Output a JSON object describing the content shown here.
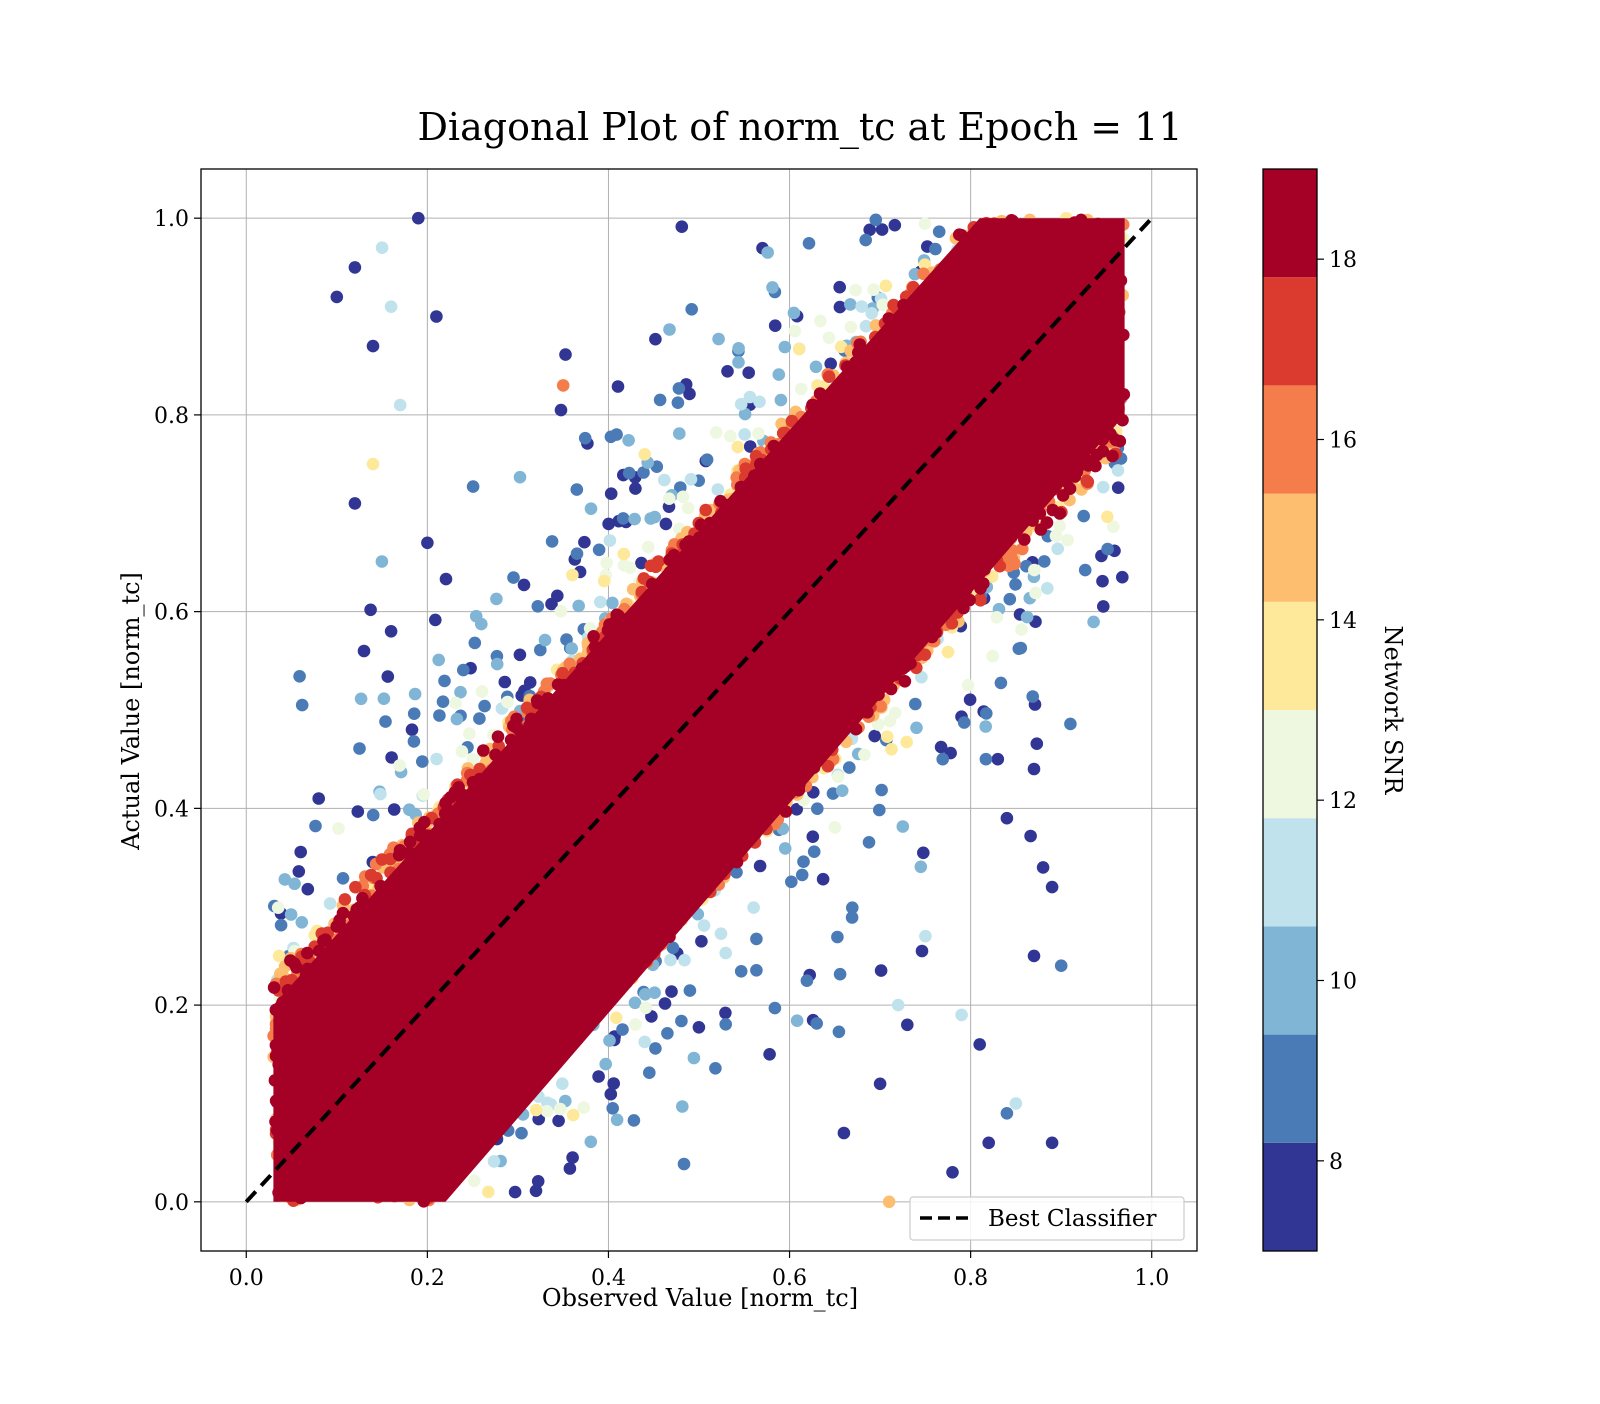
{
  "chart_data": {
    "type": "scatter",
    "title": "Diagonal Plot of norm_tc at Epoch = 11",
    "xlabel": "Observed Value [norm_tc]",
    "ylabel": "Actual Value [norm_tc]",
    "xlim": [
      -0.05,
      1.05
    ],
    "ylim": [
      -0.05,
      1.05
    ],
    "x_ticks": [
      "0.0",
      "0.2",
      "0.4",
      "0.6",
      "0.8",
      "1.0"
    ],
    "y_ticks": [
      "0.0",
      "0.2",
      "0.4",
      "0.6",
      "0.8",
      "1.0"
    ],
    "grid": true,
    "legend": {
      "placement": "lower-right",
      "entries": [
        "Best Classifier"
      ]
    },
    "reference_line": {
      "name": "Best Classifier",
      "from": [
        0,
        0
      ],
      "to": [
        1,
        1
      ],
      "style": "dashed",
      "color": "#000000"
    },
    "colorbar": {
      "label": "Network SNR",
      "range": [
        7,
        19
      ],
      "tick_labels": [
        "8",
        "10",
        "12",
        "14",
        "16",
        "18"
      ],
      "ticks": [
        8,
        10,
        12,
        14,
        16,
        18
      ],
      "bins": [
        {
          "from": 7,
          "to": 8.2,
          "color": "#313695"
        },
        {
          "from": 8.2,
          "to": 9.4,
          "color": "#4a7bb7"
        },
        {
          "from": 9.4,
          "to": 10.6,
          "color": "#80b5d5"
        },
        {
          "from": 10.6,
          "to": 11.8,
          "color": "#bfe2ec"
        },
        {
          "from": 11.8,
          "to": 13.0,
          "color": "#eef7e0"
        },
        {
          "from": 13.0,
          "to": 14.2,
          "color": "#fee99a"
        },
        {
          "from": 14.2,
          "to": 15.4,
          "color": "#fdbe6f"
        },
        {
          "from": 15.4,
          "to": 16.6,
          "color": "#f57d4b"
        },
        {
          "from": 16.6,
          "to": 17.8,
          "color": "#da3b2e"
        },
        {
          "from": 17.8,
          "to": 19,
          "color": "#a50026"
        }
      ]
    },
    "points_summary": {
      "high_snr_band": {
        "snr": "18+",
        "y_minus_x_range": [
          -0.17,
          0.17
        ],
        "color": "#a50026"
      },
      "note_x_range": [
        0.03,
        0.97
      ],
      "note_y_range": [
        0.0,
        1.0
      ]
    },
    "sample_points": [
      [
        0.1,
        0.92,
        7.5
      ],
      [
        0.12,
        0.95,
        7.5
      ],
      [
        0.15,
        0.97,
        11
      ],
      [
        0.19,
        1.0,
        7.5
      ],
      [
        0.16,
        0.91,
        11
      ],
      [
        0.21,
        0.9,
        7.5
      ],
      [
        0.14,
        0.87,
        7.5
      ],
      [
        0.17,
        0.81,
        11
      ],
      [
        0.12,
        0.71,
        7.5
      ],
      [
        0.14,
        0.75,
        13
      ],
      [
        0.2,
        0.67,
        7.5
      ],
      [
        0.13,
        0.56,
        7.5
      ],
      [
        0.08,
        0.41,
        7.5
      ],
      [
        0.16,
        0.58,
        7.5
      ],
      [
        0.35,
        0.83,
        16
      ],
      [
        0.44,
        0.76,
        13
      ],
      [
        0.66,
        0.07,
        7.5
      ],
      [
        0.7,
        0.12,
        7.5
      ],
      [
        0.72,
        0.2,
        11
      ],
      [
        0.75,
        0.27,
        11
      ],
      [
        0.79,
        0.19,
        11
      ],
      [
        0.81,
        0.16,
        7.5
      ],
      [
        0.87,
        0.25,
        7.5
      ],
      [
        0.88,
        0.34,
        7.5
      ],
      [
        0.89,
        0.32,
        7.5
      ],
      [
        0.9,
        0.24,
        9
      ],
      [
        0.89,
        0.06,
        7.5
      ],
      [
        0.84,
        0.09,
        9
      ],
      [
        0.83,
        0.45,
        7.5
      ],
      [
        0.84,
        0.39,
        7.5
      ],
      [
        0.87,
        0.44,
        7.5
      ],
      [
        0.71,
        0.0,
        15
      ],
      [
        0.78,
        0.03,
        7.5
      ],
      [
        0.82,
        0.06,
        7.5
      ],
      [
        0.85,
        0.1,
        11
      ],
      [
        0.73,
        0.18,
        7.5
      ]
    ]
  }
}
